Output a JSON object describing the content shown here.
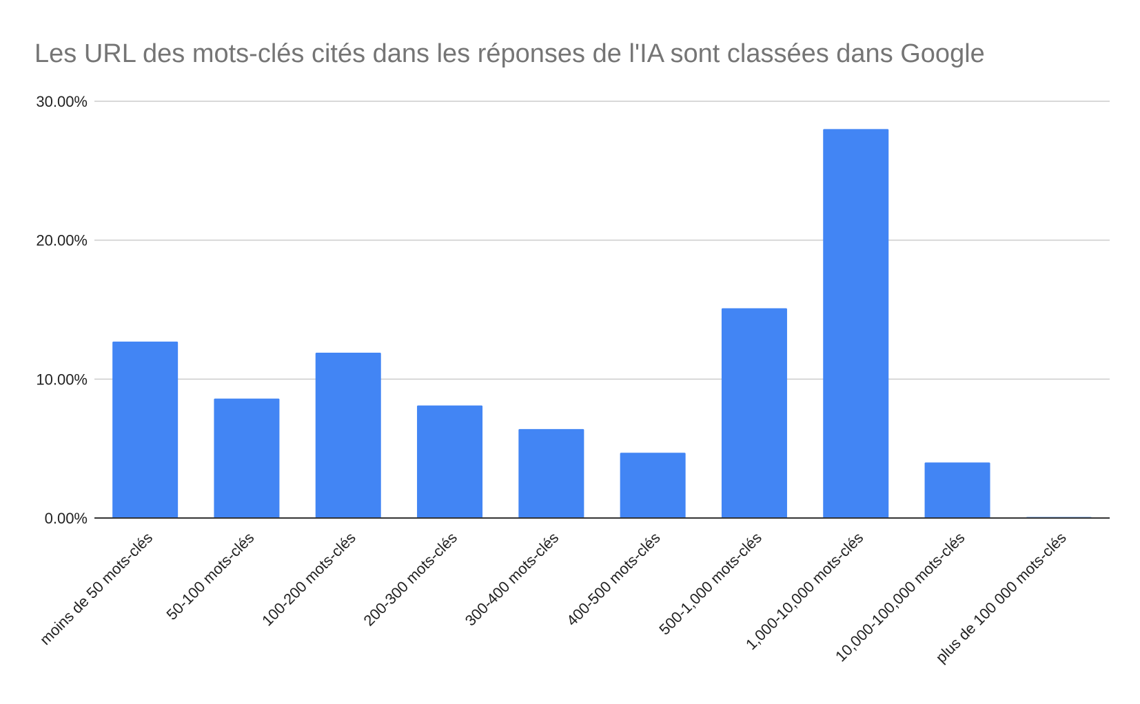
{
  "colors": {
    "bar": "#4285f4",
    "grid": "#cccccc",
    "axis": "#333333",
    "title": "#757575",
    "label": "#222222",
    "background": "#ffffff"
  },
  "chart_data": {
    "type": "bar",
    "title": "Les URL des mots-clés cités dans les réponses de l'IA sont classées dans Google",
    "xlabel": "",
    "ylabel": "",
    "categories": [
      "moins de 50 mots-clés",
      "50-100 mots-clés",
      "100-200 mots-clés",
      "200-300 mots-clés",
      "300-400 mots-clés",
      "400-500 mots-clés",
      "500-1,000 mots-clés",
      "1,000-10,000 mots-clés",
      "10,000-100,000 mots-clés",
      "plus de 100 000 mots-clés"
    ],
    "values": [
      12.7,
      8.6,
      11.9,
      8.1,
      6.4,
      4.7,
      15.1,
      28.0,
      4.0,
      0.05
    ],
    "ylim": [
      0,
      30
    ],
    "yticks": [
      0,
      10,
      20,
      30
    ],
    "ytick_labels": [
      "0.00%",
      "10.00%",
      "20.00%",
      "30.00%"
    ],
    "grid": true,
    "legend": "none"
  }
}
